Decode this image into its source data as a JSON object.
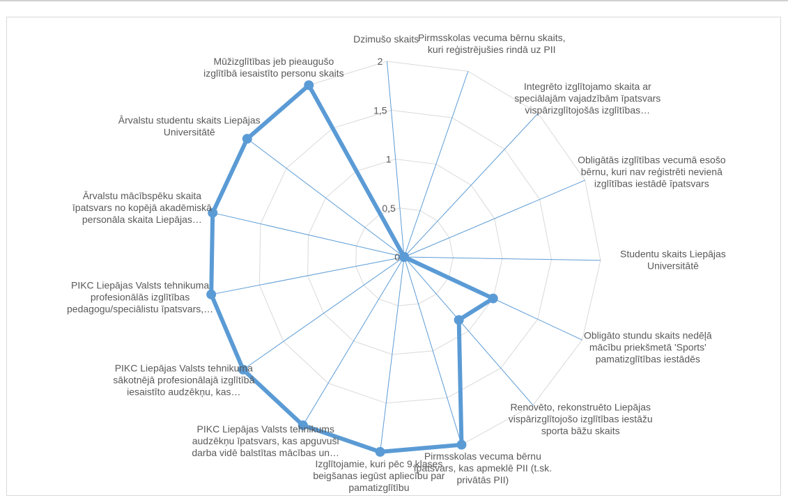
{
  "chart_data": {
    "type": "radar",
    "title": "",
    "axis_range": [
      0,
      2
    ],
    "axis_ticks": [
      "0",
      "0,5",
      "1",
      "1,5",
      "2"
    ],
    "grid": true,
    "legend": "none",
    "series_color": "#5b9bd5",
    "grid_color": "#d9d9d9",
    "axis_color": "#5b9bd5",
    "categories": [
      {
        "lines": [
          "Dzimušo skaits"
        ]
      },
      {
        "lines": [
          "Pirmsskolas vecuma bērnu skaits,",
          "kuri reģistrējušies rindā uz PII"
        ]
      },
      {
        "lines": [
          "Integrēto izglītojamo skaita ar",
          "speciālajām vajadzībām īpatsvars",
          "vispārizglītojošās izglītības…"
        ]
      },
      {
        "lines": [
          "Obligātās izglītības vecumā esošo",
          "bērnu, kuri nav reģistrēti nevienā",
          "izglītības iestādē īpatsvars"
        ]
      },
      {
        "lines": [
          "Studentu skaits Liepājas",
          "Universitātē"
        ]
      },
      {
        "lines": [
          "Obligāto stundu skaits nedēļā",
          "mācību priekšmetā 'Sports'",
          "pamatizglītības iestādēs"
        ]
      },
      {
        "lines": [
          "Renovēto, rekonstruēto Liepājas",
          "vispārizglītojošo izglītības iestāžu",
          "sporta bāžu skaits"
        ]
      },
      {
        "lines": [
          "Pirmsskolas vecuma bērnu",
          "īpatsvars, kas apmeklē PII (t.sk.",
          "privātās PII)"
        ]
      },
      {
        "lines": [
          "Izglītojamie, kuri pēc 9.klases",
          "beigšanas iegūst apliecību par",
          "pamatizglītību"
        ]
      },
      {
        "lines": [
          "PIKC Liepājas Valsts tehnikums",
          "audzēkņu īpatsvars, kas apguvuši",
          "darba vidē balstītas mācības un…"
        ]
      },
      {
        "lines": [
          "PIKC Liepājas Valsts tehnikuma",
          "sākotnējā profesionālajā izglītībā",
          "iesaistīto audzēkņu, kas…"
        ]
      },
      {
        "lines": [
          "PIKC Liepājas Valsts tehnikuma",
          "profesionālās izglītības",
          "pedagogu/speciālistu īpatsvars,…"
        ]
      },
      {
        "lines": [
          "Ārvalstu mācībspēku skaita",
          "īpatsvars no kopējā akadēmiskā",
          "personāla skaita Liepājas…"
        ]
      },
      {
        "lines": [
          "Ārvalstu studentu skaits Liepājas",
          "Universitātē"
        ]
      },
      {
        "lines": [
          "Mūžizglītības jeb pieaugušo",
          "izglītībā iesaistīto personu skaits"
        ]
      }
    ],
    "values": [
      0,
      0,
      0,
      0,
      0,
      1,
      0.85,
      2,
      2,
      2,
      2,
      2,
      2,
      2,
      2
    ]
  }
}
